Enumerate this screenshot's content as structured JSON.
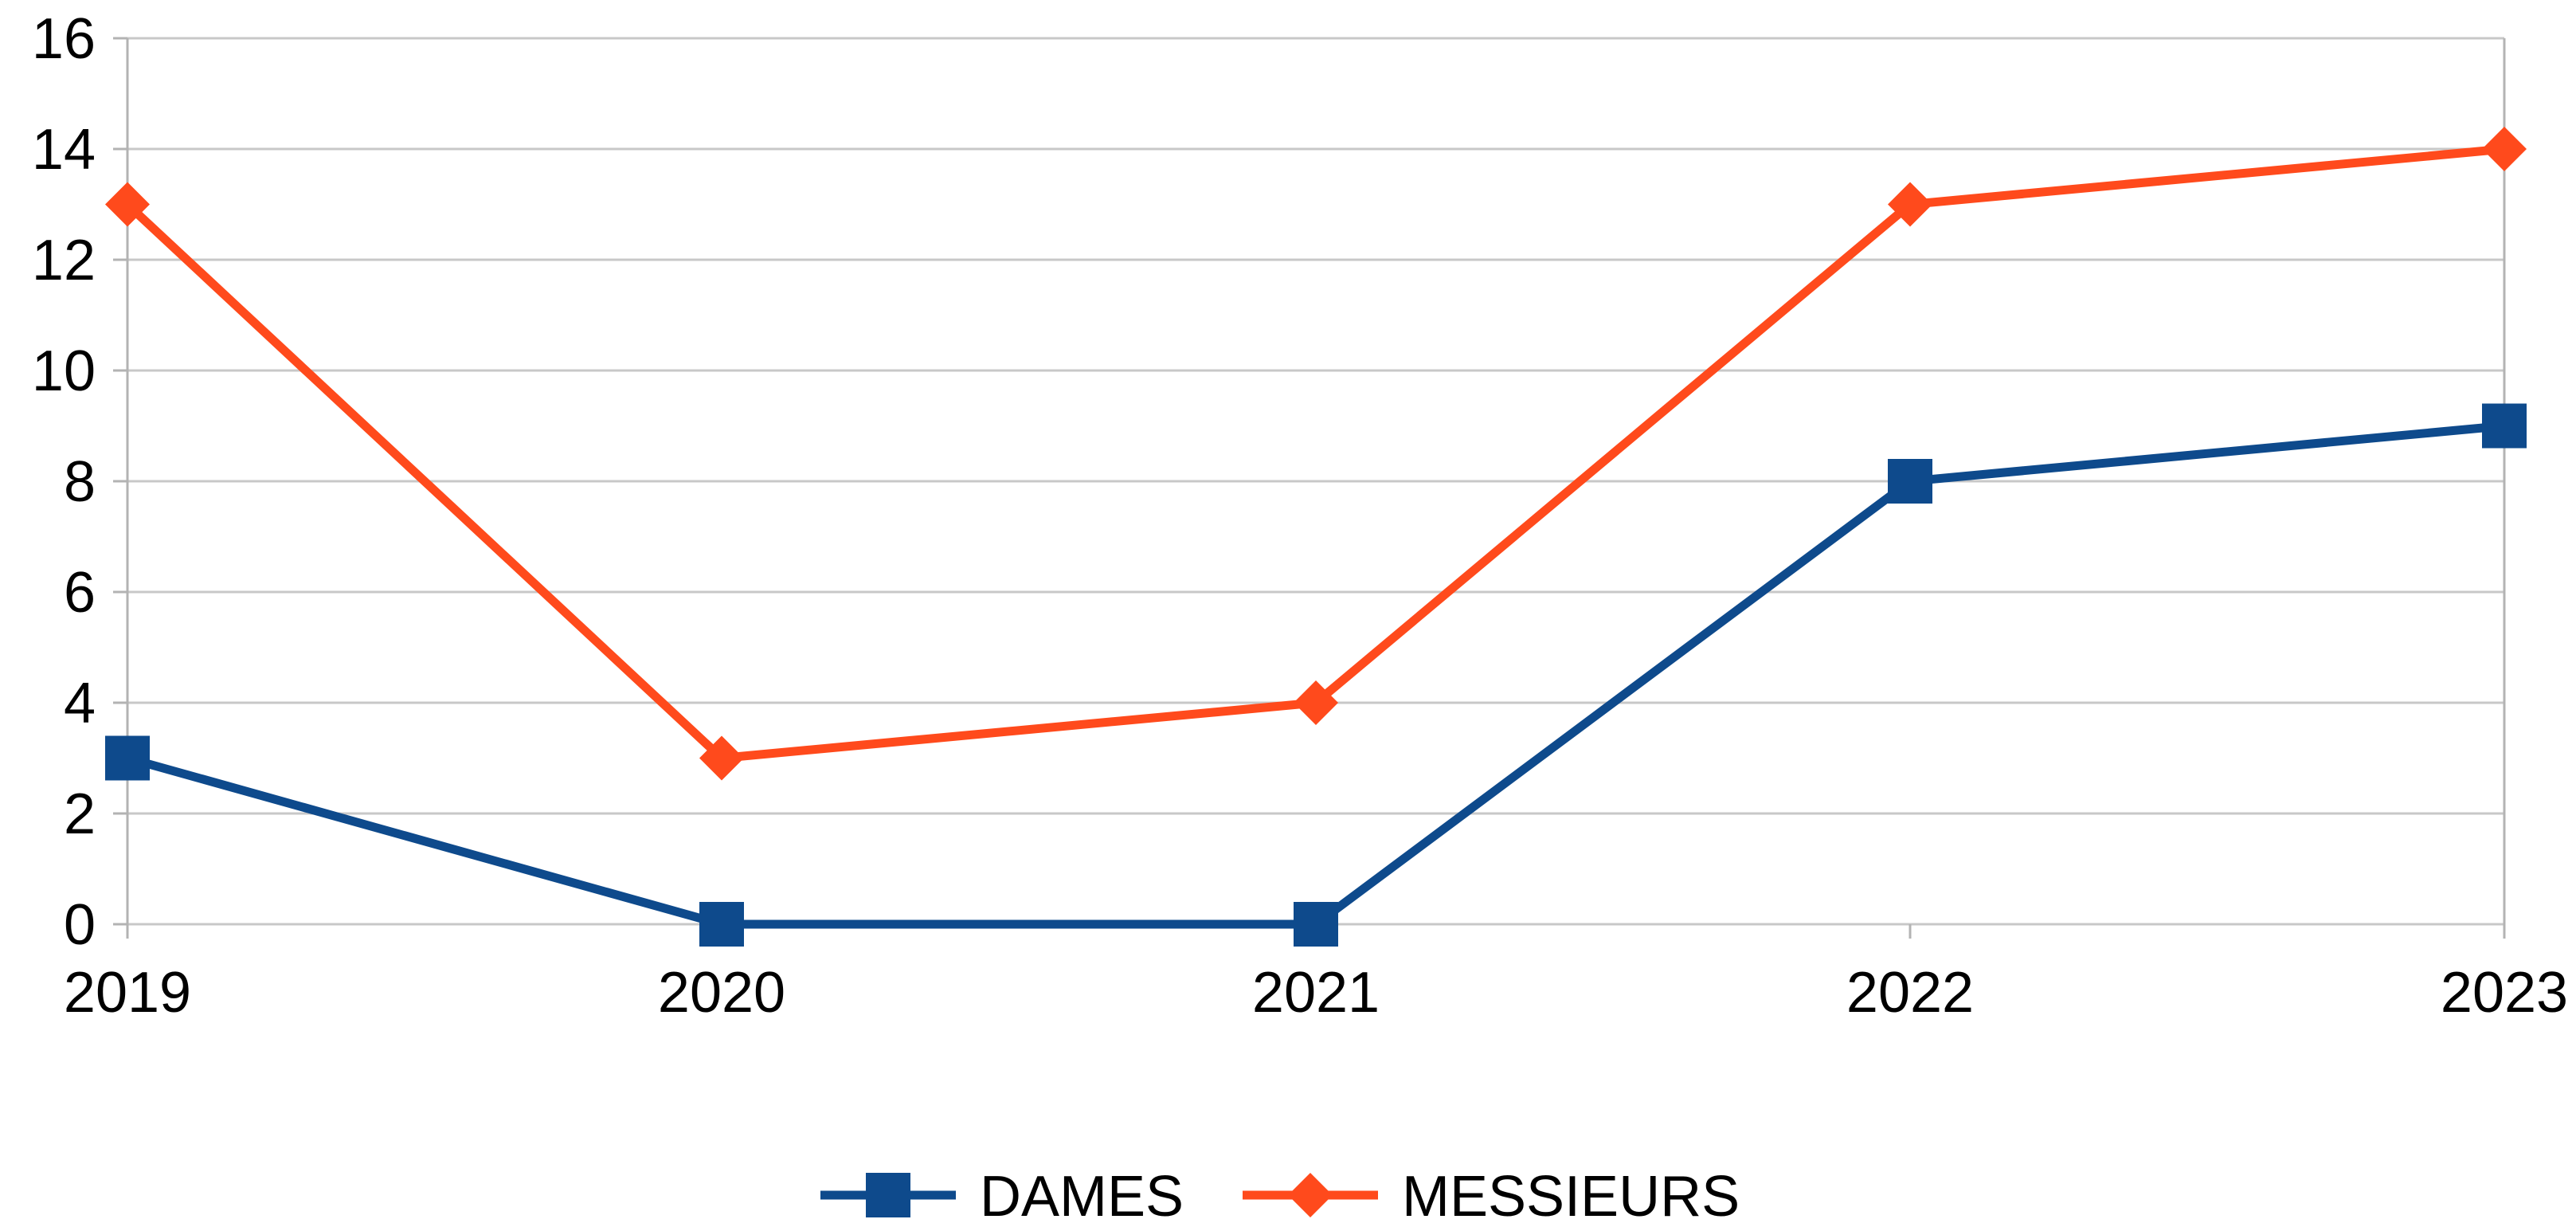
{
  "chart_data": {
    "type": "line",
    "title": "",
    "xlabel": "",
    "ylabel": "",
    "categories": [
      "2019",
      "2020",
      "2021",
      "2022",
      "2023"
    ],
    "ylim": [
      0,
      16
    ],
    "yticks": [
      "0",
      "2",
      "4",
      "6",
      "8",
      "10",
      "12",
      "14",
      "16"
    ],
    "grid": "horizontal",
    "legend": "bottom",
    "series": [
      {
        "name": "DAMES",
        "values": [
          3,
          0,
          0,
          8,
          9
        ],
        "color": "#0e4a8c",
        "marker": "square"
      },
      {
        "name": "MESSIEURS",
        "values": [
          13,
          3,
          4,
          13,
          14
        ],
        "color": "#ff4a1c",
        "marker": "diamond"
      }
    ]
  }
}
